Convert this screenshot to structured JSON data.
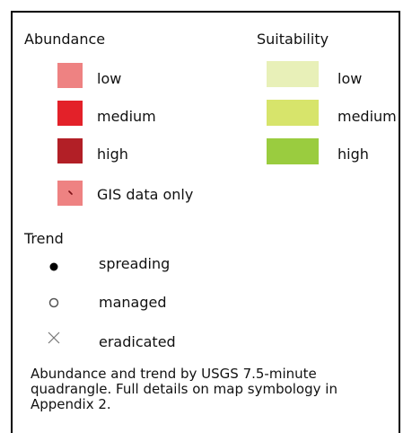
{
  "abundance": {
    "title": "Abundance",
    "items": [
      {
        "label": "low",
        "color": "#ee8282"
      },
      {
        "label": "medium",
        "color": "#e32129"
      },
      {
        "label": "high",
        "color": "#b21f26"
      },
      {
        "label": "GIS data only",
        "color": "#ee8282",
        "mark_color": "#7a0f14"
      }
    ]
  },
  "suitability": {
    "title": "Suitability",
    "items": [
      {
        "label": "low",
        "color": "#e8f0b8"
      },
      {
        "label": "medium",
        "color": "#d7e46b"
      },
      {
        "label": "high",
        "color": "#9acc3f"
      }
    ]
  },
  "trend": {
    "title": "Trend",
    "items": [
      {
        "label": "spreading",
        "icon": "filled-circle-icon"
      },
      {
        "label": "managed",
        "icon": "hollow-circle-icon"
      },
      {
        "label": "eradicated",
        "icon": "x-mark-icon"
      }
    ]
  },
  "note": {
    "line1": "Abundance and trend by USGS 7.5-minute",
    "line2": "quadrangle.  Full details on map symbology in",
    "line3": "Appendix 2."
  }
}
